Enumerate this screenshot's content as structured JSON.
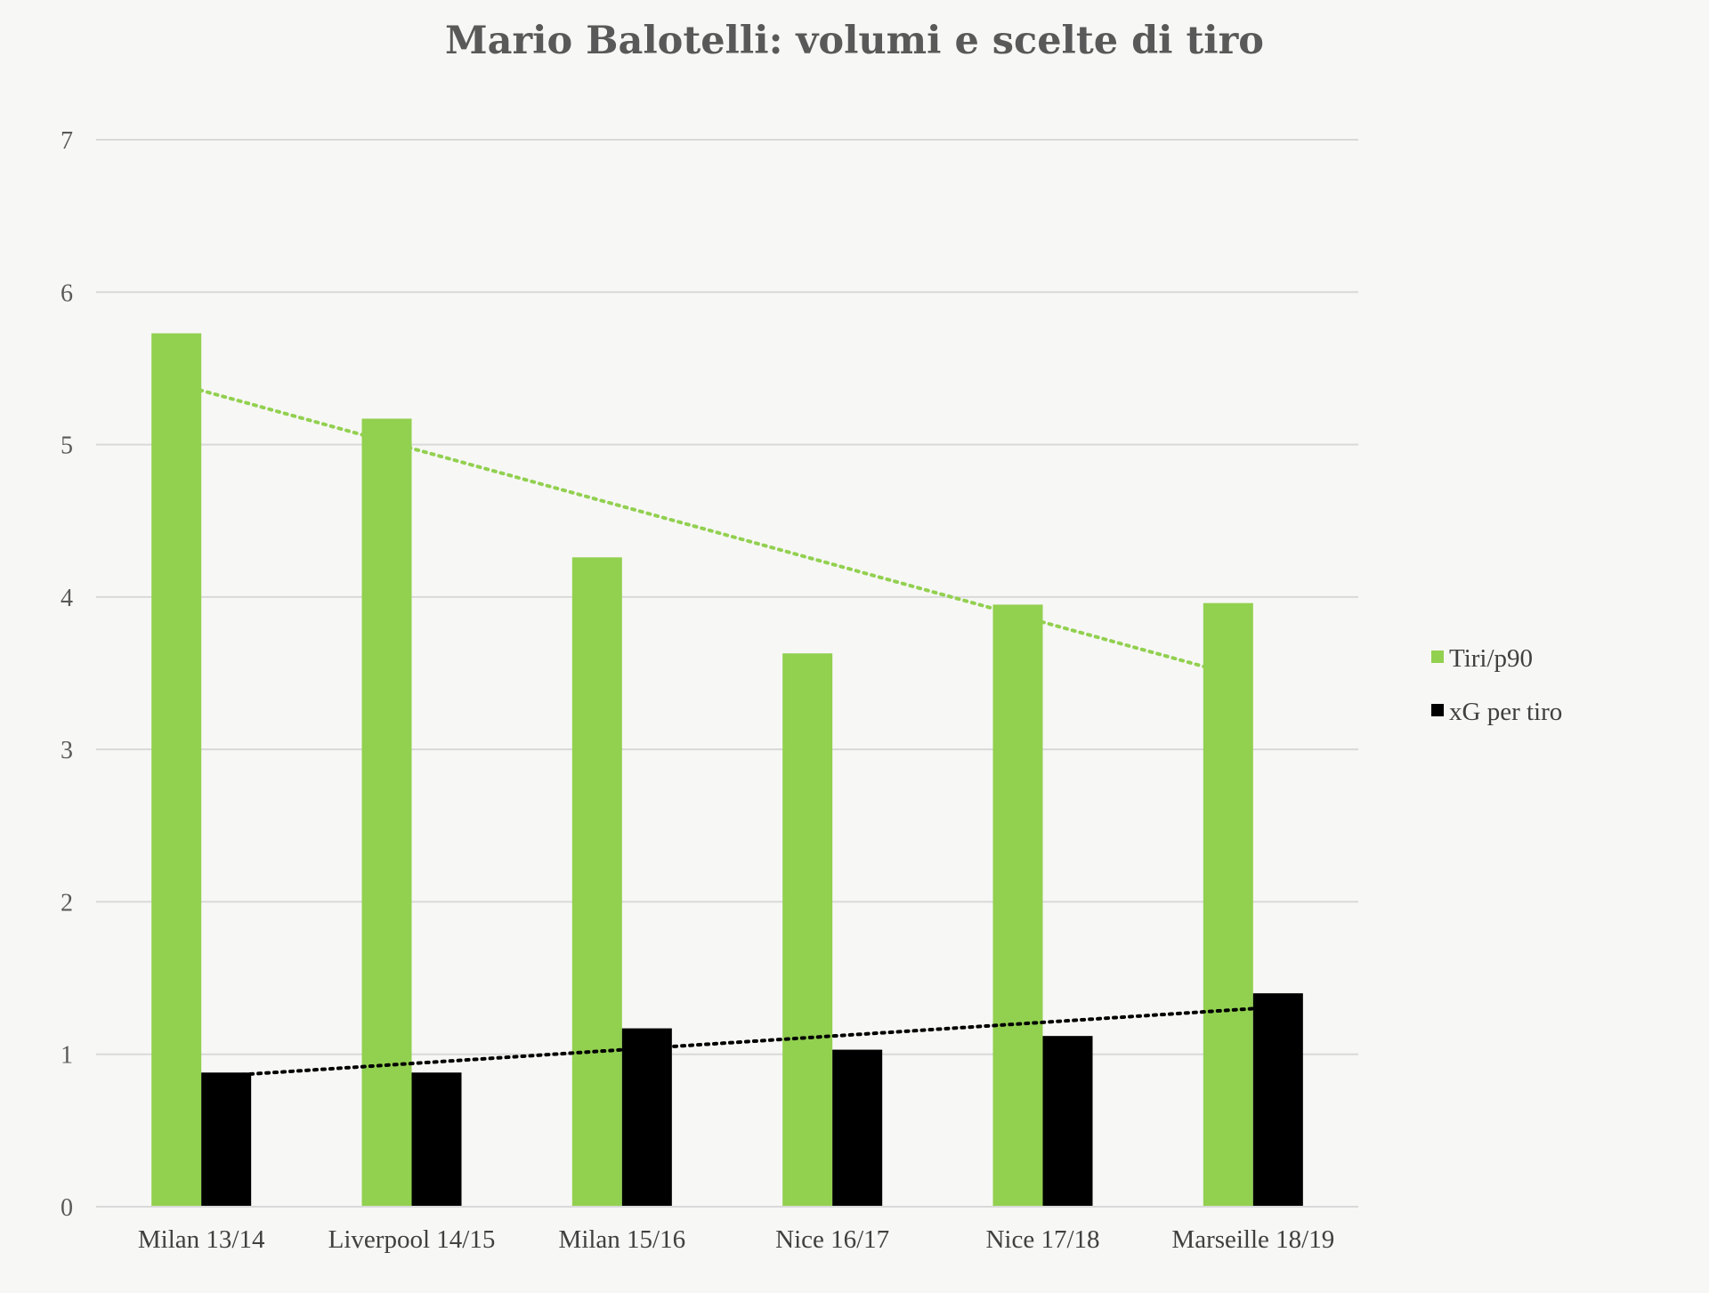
{
  "chart_data": {
    "type": "bar",
    "title": "Mario Balotelli: volumi e scelte di tiro",
    "xlabel": "",
    "ylabel": "",
    "ylim": [
      0,
      7
    ],
    "yticks": [
      "0",
      "1",
      "2",
      "3",
      "4",
      "5",
      "6",
      "7"
    ],
    "grid": true,
    "legend_position": "right",
    "categories": [
      "Milan 13/14",
      "Liverpool 14/15",
      "Milan 15/16",
      "Nice 16/17",
      "Nice 17/18",
      "Marseille 18/19"
    ],
    "series": [
      {
        "name": "Tiri/p90",
        "color": "#92d050",
        "values": [
          5.73,
          5.17,
          4.26,
          3.63,
          3.95,
          3.96
        ],
        "trendline": {
          "style": "dotted",
          "start": 5.4,
          "end": 3.5
        }
      },
      {
        "name": "xG per tiro",
        "color": "#000000",
        "values": [
          0.88,
          0.88,
          1.17,
          1.03,
          1.12,
          1.4
        ],
        "trendline": {
          "style": "dotted",
          "start": 0.86,
          "end": 1.31
        }
      }
    ]
  }
}
